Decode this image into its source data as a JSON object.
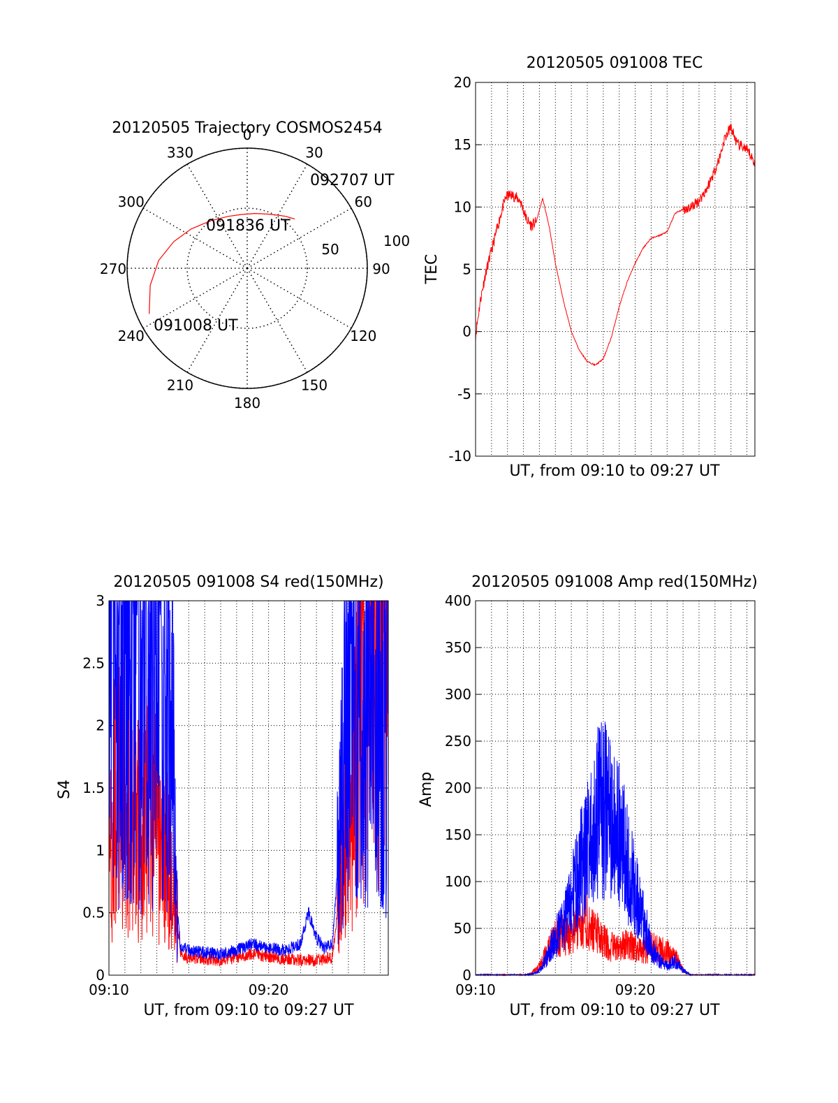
{
  "colors": {
    "red": "#ff0000",
    "blue": "#0000ff",
    "axis": "#000000",
    "grid": "#000000"
  },
  "chart_data": [
    {
      "type": "polar",
      "title": "20120505 Trajectory COSMOS2454",
      "angle_labels": [
        "0",
        "30",
        "60",
        "90",
        "120",
        "150",
        "180",
        "210",
        "240",
        "270",
        "300",
        "330"
      ],
      "radius_labels": [
        "50",
        "100"
      ],
      "rlim": [
        0,
        100
      ],
      "series": [
        {
          "color": "#ff0000",
          "points": [
            [
              245,
              90
            ],
            [
              260,
              82
            ],
            [
              275,
              74
            ],
            [
              290,
              65
            ],
            [
              305,
              57
            ],
            [
              322,
              50
            ],
            [
              340,
              46
            ],
            [
              355,
              45
            ],
            [
              8,
              46
            ],
            [
              20,
              48
            ],
            [
              30,
              51
            ],
            [
              37,
              54
            ],
            [
              40,
              55
            ],
            [
              42,
              56
            ],
            [
              44,
              57
            ]
          ]
        }
      ],
      "annotations": [
        "092707 UT",
        "091836 UT",
        "091008 UT"
      ]
    },
    {
      "type": "line",
      "title": "20120505 091008 TEC",
      "xlabel": "UT, from 09:10 to 09:27 UT",
      "ylabel": "TEC",
      "xlim": [
        0,
        17.5
      ],
      "ylim": [
        -10,
        20
      ],
      "yticks": [
        "-10",
        "-5",
        "0",
        "5",
        "10",
        "15",
        "20"
      ],
      "grid": true,
      "series": [
        {
          "color": "#ff0000",
          "x": [
            0,
            0.3,
            0.6,
            1,
            1.3,
            1.6,
            1.9,
            2.2,
            2.5,
            2.8,
            3.2,
            3.5,
            3.8,
            4.2,
            4.6,
            5,
            5.5,
            6,
            6.5,
            7,
            7.5,
            8,
            8.5,
            9,
            9.5,
            10,
            10.5,
            11,
            11.5,
            12,
            12.5,
            13,
            13.5,
            14,
            14.5,
            15,
            15.3,
            15.6,
            16,
            16.4,
            16.8,
            17.2,
            17.5
          ],
          "y": [
            -0.3,
            2.5,
            4.5,
            6.5,
            8,
            9.5,
            10.8,
            11,
            10.8,
            10.5,
            9,
            8.5,
            8.8,
            10.7,
            8.5,
            5.5,
            2.5,
            0,
            -1.5,
            -2.4,
            -2.7,
            -2.2,
            -0.5,
            2,
            4,
            5.5,
            6.7,
            7.5,
            7.7,
            8,
            9.5,
            9.8,
            10,
            10.5,
            11.5,
            13,
            14,
            15.5,
            16.4,
            15,
            14.8,
            14.2,
            13.5
          ]
        }
      ]
    },
    {
      "type": "line",
      "title": "20120505 091008 S4 red(150MHz)",
      "xlabel": "UT, from 09:10 to 09:27 UT",
      "ylabel": "S4",
      "xlim": [
        0,
        17.5
      ],
      "ylim": [
        0,
        3
      ],
      "xticks": [
        "09:10",
        "09:20"
      ],
      "yticks": [
        "0",
        "0.5",
        "1",
        "1.5",
        "2",
        "2.5",
        "3"
      ],
      "grid": true,
      "series": [
        {
          "color": "#ff0000",
          "x": [
            0,
            0.5,
            1,
            1.5,
            2,
            2.5,
            3,
            3.5,
            4,
            4.2,
            4.5,
            5,
            6,
            7,
            8,
            9,
            10,
            11,
            12,
            13,
            14,
            14.3,
            14.6,
            15,
            15.5,
            16,
            16.5,
            17,
            17.5
          ],
          "y": [
            1.2,
            1.4,
            1.5,
            1.3,
            1.1,
            1.5,
            1.2,
            1.0,
            0.8,
            0.5,
            0.18,
            0.14,
            0.13,
            0.12,
            0.15,
            0.17,
            0.15,
            0.13,
            0.12,
            0.12,
            0.14,
            0.5,
            1.0,
            1.5,
            2.0,
            2.5,
            2.7,
            2.6,
            2.8
          ]
        },
        {
          "color": "#0000ff",
          "x": [
            0,
            0.5,
            1,
            1.5,
            2,
            2.5,
            3,
            3.5,
            4,
            4.2,
            4.5,
            5,
            6,
            7,
            8,
            9,
            10,
            11,
            12,
            12.5,
            13,
            13.5,
            14,
            14.3,
            14.6,
            15,
            15.5,
            16,
            16.5,
            17,
            17.5
          ],
          "y": [
            2.8,
            2.6,
            2.5,
            2.7,
            2.4,
            2.6,
            2.5,
            2.3,
            2.0,
            0.6,
            0.22,
            0.2,
            0.18,
            0.17,
            0.2,
            0.25,
            0.22,
            0.2,
            0.25,
            0.5,
            0.3,
            0.22,
            0.25,
            0.8,
            1.5,
            2.2,
            2.6,
            2.3,
            2.4,
            2.2,
            2.3
          ]
        }
      ]
    },
    {
      "type": "line",
      "title": "20120505 091008 Amp red(150MHz)",
      "xlabel": "UT, from 09:10 to 09:27 UT",
      "ylabel": "Amp",
      "xlim": [
        0,
        17.5
      ],
      "ylim": [
        0,
        400
      ],
      "xticks": [
        "09:10",
        "09:20"
      ],
      "yticks": [
        "0",
        "50",
        "100",
        "150",
        "200",
        "250",
        "300",
        "350",
        "400"
      ],
      "grid": true,
      "series": [
        {
          "color": "#ff0000",
          "x": [
            0,
            2,
            3,
            3.5,
            4,
            4.5,
            5,
            5.5,
            6,
            6.5,
            7,
            7.5,
            8,
            8.5,
            9,
            9.5,
            10,
            10.5,
            11,
            11.5,
            12,
            12.5,
            13,
            13.5,
            14,
            17.5
          ],
          "y": [
            0,
            0,
            0,
            2,
            10,
            25,
            40,
            45,
            40,
            55,
            60,
            45,
            40,
            30,
            28,
            35,
            30,
            25,
            30,
            28,
            25,
            20,
            5,
            0,
            0,
            0
          ]
        },
        {
          "color": "#0000ff",
          "x": [
            0,
            2,
            3,
            3.5,
            4,
            4.5,
            5,
            5.5,
            6,
            6.5,
            7,
            7.5,
            8,
            8.5,
            9,
            9.5,
            10,
            10.5,
            11,
            11.5,
            12,
            12.5,
            13,
            13.5,
            14,
            17.5
          ],
          "y": [
            0,
            0,
            0,
            1,
            5,
            20,
            40,
            55,
            80,
            110,
            140,
            170,
            180,
            160,
            150,
            120,
            90,
            60,
            30,
            15,
            10,
            15,
            5,
            0,
            0,
            0
          ]
        }
      ]
    }
  ]
}
